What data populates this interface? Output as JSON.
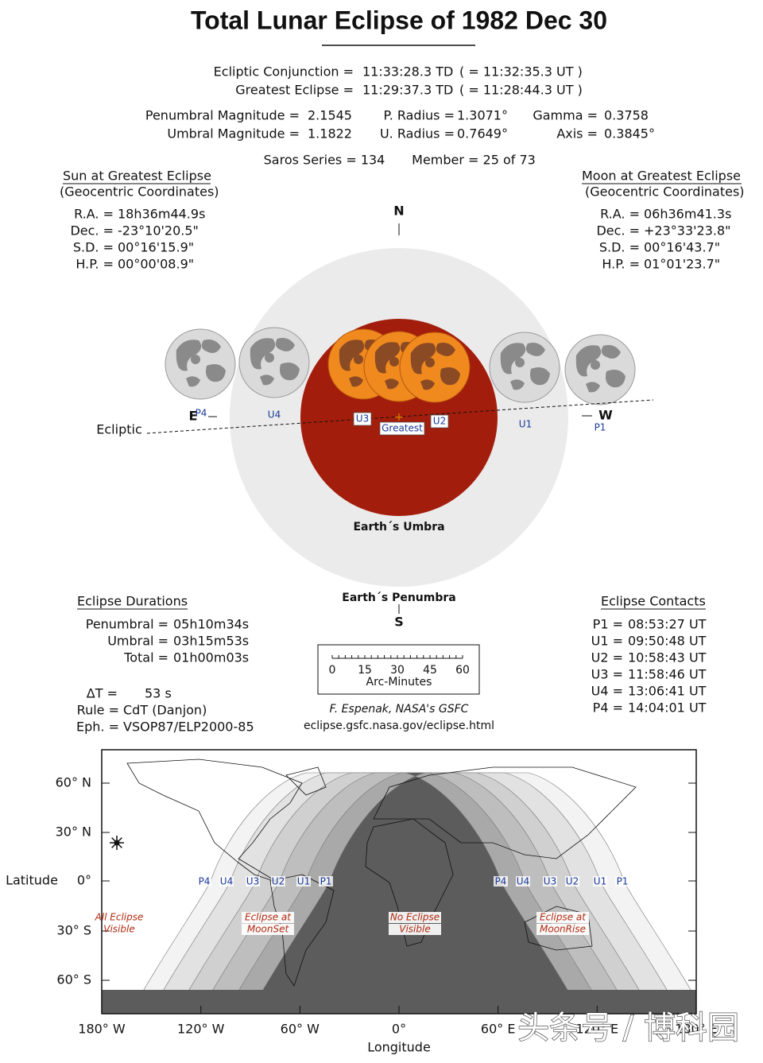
{
  "title": "Total Lunar Eclipse of  1982 Dec 30",
  "conjunction": {
    "label": "Ecliptic Conjunction =",
    "td": "11:33:28.3 TD",
    "ut": "( = 11:32:35.3 UT )"
  },
  "greatest": {
    "label": "Greatest Eclipse =",
    "td": "11:29:37.3 TD",
    "ut": "( = 11:28:44.3 UT )"
  },
  "parameters": [
    [
      "Penumbral Magnitude =",
      "2.1545"
    ],
    [
      "Umbral Magnitude =",
      "1.1822"
    ],
    [
      "P. Radius =",
      "1.3071°"
    ],
    [
      "U. Radius =",
      "0.7649°"
    ],
    [
      "Gamma =",
      "0.3758"
    ],
    [
      "Axis =",
      "0.3845°"
    ]
  ],
  "saros": [
    "Saros Series = 134",
    "Member = 25 of 73"
  ],
  "sun": {
    "heading": "Sun at Greatest Eclipse",
    "subheading": "(Geocentric Coordinates)",
    "rows": [
      [
        "R.A. =",
        "18h36m44.9s"
      ],
      [
        "Dec. =",
        "-23°10'20.5\""
      ],
      [
        "S.D. =",
        "00°16'15.9\""
      ],
      [
        "H.P. =",
        "00°00'08.9\""
      ]
    ]
  },
  "moon": {
    "heading": "Moon at Greatest Eclipse",
    "subheading": "(Geocentric Coordinates)",
    "rows": [
      [
        "R.A. =",
        "06h36m41.3s"
      ],
      [
        "Dec. =",
        "+23°33'23.8\""
      ],
      [
        "S.D. =",
        "00°16'43.7\""
      ],
      [
        "H.P. =",
        "01°01'23.7\""
      ]
    ]
  },
  "diagram": {
    "north": "N",
    "south": "S",
    "east": "E",
    "west": "W",
    "ecliptic": "Ecliptic",
    "umbra": "Earth´s Umbra",
    "penumbra": "Earth´s Penumbra",
    "contacts": [
      "P4",
      "U4",
      "U3",
      "Greatest",
      "U2",
      "U1",
      "P1"
    ]
  },
  "durations": {
    "heading": "Eclipse Durations",
    "rows": [
      [
        "Penumbral =",
        "05h10m34s"
      ],
      [
        "Umbral =",
        "03h15m53s"
      ],
      [
        "Total =",
        "01h00m03s"
      ]
    ]
  },
  "settings": [
    [
      "ΔT =",
      "53 s"
    ],
    [
      "Rule =",
      "CdT (Danjon)"
    ],
    [
      "Eph. =",
      "VSOP87/ELP2000-85"
    ]
  ],
  "scale": {
    "ticks": [
      "0",
      "15",
      "30",
      "45",
      "60"
    ],
    "label": "Arc-Minutes"
  },
  "credit": [
    "F. Espenak, NASA's GSFC",
    "eclipse.gsfc.nasa.gov/eclipse.html"
  ],
  "contacts": {
    "heading": "Eclipse Contacts",
    "rows": [
      [
        "P1 =",
        "08:53:27 UT"
      ],
      [
        "U1 =",
        "09:50:48 UT"
      ],
      [
        "U2 =",
        "10:58:43 UT"
      ],
      [
        "U3 =",
        "11:58:46 UT"
      ],
      [
        "U4 =",
        "13:06:41 UT"
      ],
      [
        "P4 =",
        "14:04:01 UT"
      ]
    ]
  },
  "map": {
    "latitude_labels": [
      "60° N",
      "30° N",
      "0°",
      "30° S",
      "60° S"
    ],
    "latitude_title": "Latitude",
    "longitude_labels": [
      "180° W",
      "120° W",
      "60° W",
      "0°",
      "60° E",
      "120° E",
      "180° E"
    ],
    "longitude_title": "Longitude",
    "contact_labels": [
      "P4",
      "U4",
      "U3",
      "U2",
      "U1",
      "P1"
    ],
    "zones": [
      [
        "All Eclipse",
        "Visible"
      ],
      [
        "Eclipse at",
        "MoonSet"
      ],
      [
        "No Eclipse",
        "Visible"
      ],
      [
        "Eclipse at",
        "MoonRise"
      ]
    ]
  },
  "watermark": "头条号 / 博科园"
}
